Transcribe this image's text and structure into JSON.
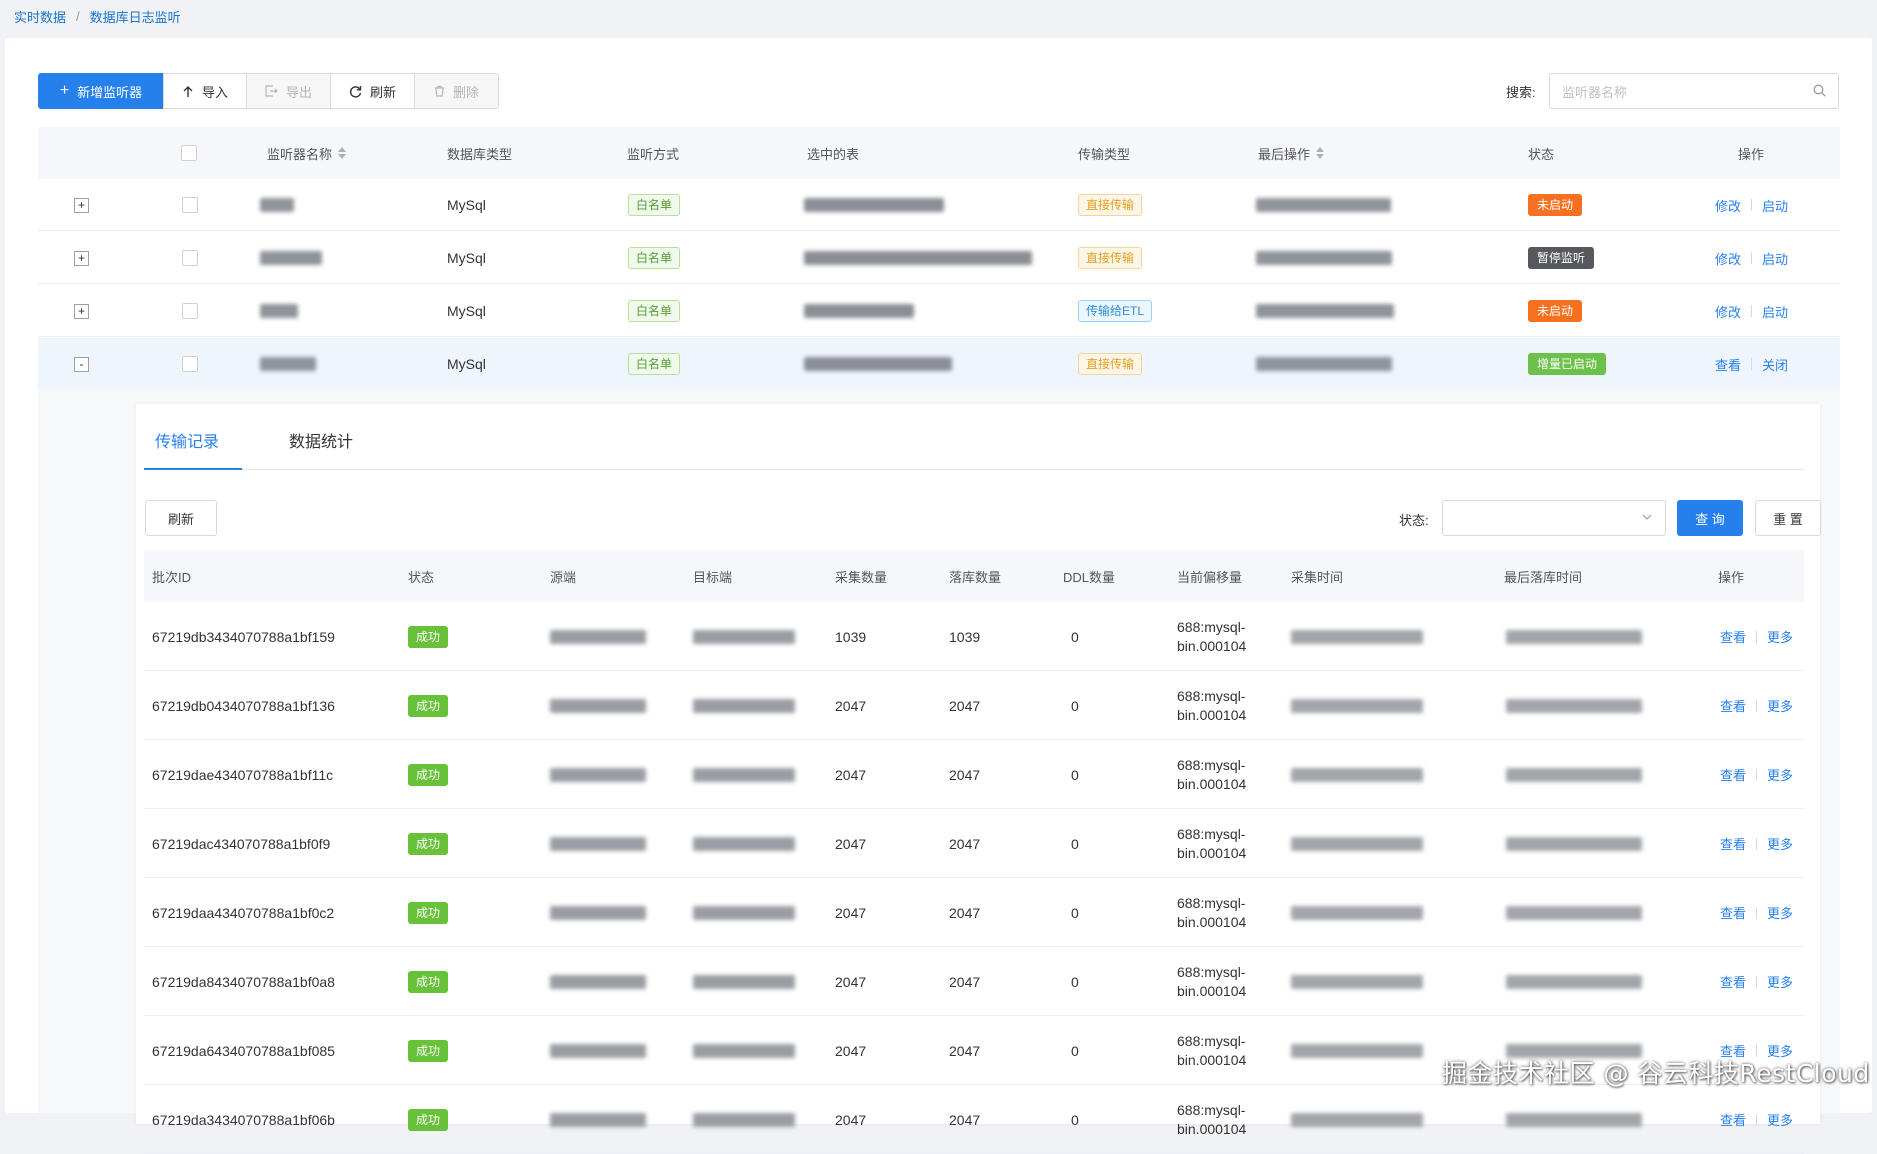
{
  "breadcrumb": [
    "实时数据",
    "数据库日志监听"
  ],
  "toolbar": {
    "add": "新增监听器",
    "import": "导入",
    "export": "导出",
    "refresh": "刷新",
    "delete": "删除",
    "search_label": "搜索:",
    "search_placeholder": "监听器名称"
  },
  "main_table": {
    "headers": {
      "name": "监听器名称",
      "db_type": "数据库类型",
      "mode": "监听方式",
      "tables": "选中的表",
      "transfer": "传输类型",
      "last_op": "最后操作",
      "status": "状态",
      "actions": "操作"
    },
    "rows": [
      {
        "expand": "+",
        "db_type": "MySql",
        "mode": "白名单",
        "transfer": "直接传输",
        "transfer_style": "yellow",
        "status": "未启动",
        "status_color": "#f5701f",
        "act1": "修改",
        "act2": "启动"
      },
      {
        "expand": "+",
        "db_type": "MySql",
        "mode": "白名单",
        "transfer": "直接传输",
        "transfer_style": "yellow",
        "status": "暂停监听",
        "status_color": "#55585d",
        "act1": "修改",
        "act2": "启动"
      },
      {
        "expand": "+",
        "db_type": "MySql",
        "mode": "白名单",
        "transfer": "传输给ETL",
        "transfer_style": "blue",
        "status": "未启动",
        "status_color": "#f5701f",
        "act1": "修改",
        "act2": "启动"
      },
      {
        "expand": "-",
        "db_type": "MySql",
        "mode": "白名单",
        "transfer": "直接传输",
        "transfer_style": "yellow",
        "status": "增量已启动",
        "status_color": "#6cc14a",
        "act1": "查看",
        "act2": "关闭"
      }
    ]
  },
  "detail": {
    "tabs": [
      "传输记录",
      "数据统计"
    ],
    "refresh": "刷新",
    "status_label": "状态:",
    "status_value": "",
    "query": "查 询",
    "reset": "重 置",
    "headers": {
      "batch_id": "批次ID",
      "status": "状态",
      "source": "源端",
      "target": "目标端",
      "collect_count": "采集数量",
      "store_count": "落库数量",
      "ddl_count": "DDL数量",
      "offset": "当前偏移量",
      "collect_time": "采集时间",
      "last_store_time": "最后落库时间",
      "actions": "操作"
    },
    "rows": [
      {
        "batch_id": "67219db3434070788a1bf159",
        "status": "成功",
        "collect": "1039",
        "store": "1039",
        "ddl": "0",
        "offset1": "688:mysql-",
        "offset2": "bin.000104",
        "view": "查看",
        "more": "更多"
      },
      {
        "batch_id": "67219db0434070788a1bf136",
        "status": "成功",
        "collect": "2047",
        "store": "2047",
        "ddl": "0",
        "offset1": "688:mysql-",
        "offset2": "bin.000104",
        "view": "查看",
        "more": "更多"
      },
      {
        "batch_id": "67219dae434070788a1bf11c",
        "status": "成功",
        "collect": "2047",
        "store": "2047",
        "ddl": "0",
        "offset1": "688:mysql-",
        "offset2": "bin.000104",
        "view": "查看",
        "more": "更多"
      },
      {
        "batch_id": "67219dac434070788a1bf0f9",
        "status": "成功",
        "collect": "2047",
        "store": "2047",
        "ddl": "0",
        "offset1": "688:mysql-",
        "offset2": "bin.000104",
        "view": "查看",
        "more": "更多"
      },
      {
        "batch_id": "67219daa434070788a1bf0c2",
        "status": "成功",
        "collect": "2047",
        "store": "2047",
        "ddl": "0",
        "offset1": "688:mysql-",
        "offset2": "bin.000104",
        "view": "查看",
        "more": "更多"
      },
      {
        "batch_id": "67219da8434070788a1bf0a8",
        "status": "成功",
        "collect": "2047",
        "store": "2047",
        "ddl": "0",
        "offset1": "688:mysql-",
        "offset2": "bin.000104",
        "view": "查看",
        "more": "更多"
      },
      {
        "batch_id": "67219da6434070788a1bf085",
        "status": "成功",
        "collect": "2047",
        "store": "2047",
        "ddl": "0",
        "offset1": "688:mysql-",
        "offset2": "bin.000104",
        "view": "查看",
        "more": "更多"
      },
      {
        "batch_id": "67219da3434070788a1bf06b",
        "status": "成功",
        "collect": "2047",
        "store": "2047",
        "ddl": "0",
        "offset1": "688:mysql-",
        "offset2": "bin.000104",
        "view": "查看",
        "more": "更多"
      }
    ]
  },
  "watermark": "掘金技术社区 @ 谷云科技RestCloud",
  "colors": {
    "primary": "#2680eb",
    "success": "#67c23a"
  }
}
